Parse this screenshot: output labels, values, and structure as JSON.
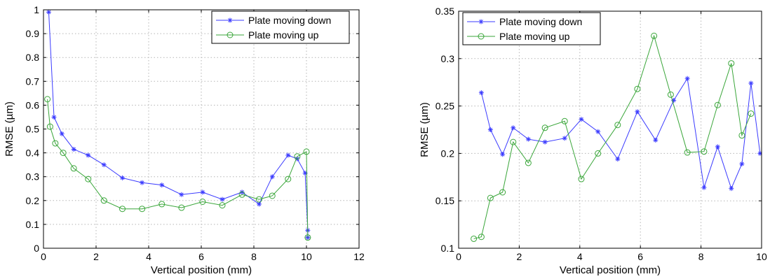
{
  "chart_data": [
    {
      "type": "line",
      "xlabel": "Vertical position (mm)",
      "ylabel": "RMSE (µm)",
      "xlim": [
        0,
        12
      ],
      "ylim": [
        0,
        1
      ],
      "xticks": [
        "0",
        "2",
        "4",
        "6",
        "8",
        "10",
        "12"
      ],
      "yticks": [
        "0",
        "0.1",
        "0.2",
        "0.3",
        "0.4",
        "0.5",
        "0.6",
        "0.7",
        "0.8",
        "0.9",
        "1"
      ],
      "grid": true,
      "legend_position": "top-right",
      "series": [
        {
          "name": "Plate moving down",
          "color": "#3b3bff",
          "marker": "star",
          "x": [
            0.2,
            0.4,
            0.7,
            1.15,
            1.7,
            2.3,
            3.0,
            3.75,
            4.5,
            5.25,
            6.05,
            6.8,
            7.55,
            8.2,
            8.7,
            9.3,
            9.65,
            9.95,
            10.05,
            10.05
          ],
          "y": [
            0.99,
            0.55,
            0.48,
            0.415,
            0.39,
            0.35,
            0.295,
            0.275,
            0.265,
            0.225,
            0.235,
            0.205,
            0.235,
            0.185,
            0.3,
            0.39,
            0.375,
            0.315,
            0.075,
            0.045
          ]
        },
        {
          "name": "Plate moving up",
          "color": "#3aa63a",
          "marker": "circle",
          "x": [
            0.15,
            0.25,
            0.45,
            0.75,
            1.15,
            1.7,
            2.3,
            3.0,
            3.75,
            4.5,
            5.25,
            6.05,
            6.8,
            7.55,
            8.2,
            8.7,
            9.3,
            9.65,
            10.0,
            10.05
          ],
          "y": [
            0.625,
            0.51,
            0.44,
            0.4,
            0.335,
            0.29,
            0.2,
            0.165,
            0.165,
            0.185,
            0.17,
            0.195,
            0.18,
            0.225,
            0.205,
            0.22,
            0.29,
            0.385,
            0.405,
            0.045
          ]
        }
      ]
    },
    {
      "type": "line",
      "xlabel": "Vertical position (mm)",
      "ylabel": "RMSE (µm)",
      "xlim": [
        0,
        10
      ],
      "ylim": [
        0.1,
        0.35
      ],
      "xticks": [
        "0",
        "2",
        "4",
        "6",
        "8",
        "10"
      ],
      "yticks": [
        "0.1",
        "0.15",
        "0.2",
        "0.25",
        "0.3",
        "0.35"
      ],
      "grid": true,
      "legend_position": "top-left",
      "series": [
        {
          "name": "Plate moving down",
          "color": "#3b3bff",
          "marker": "star",
          "x": [
            0.75,
            1.05,
            1.45,
            1.8,
            2.3,
            2.85,
            3.5,
            4.05,
            4.6,
            5.25,
            5.9,
            6.5,
            7.1,
            7.55,
            8.1,
            8.55,
            9.0,
            9.35,
            9.65,
            9.95
          ],
          "y": [
            0.264,
            0.225,
            0.199,
            0.227,
            0.215,
            0.212,
            0.216,
            0.236,
            0.223,
            0.194,
            0.244,
            0.214,
            0.256,
            0.279,
            0.164,
            0.207,
            0.163,
            0.189,
            0.274,
            0.2
          ]
        },
        {
          "name": "Plate moving up",
          "color": "#3aa63a",
          "marker": "circle",
          "x": [
            0.5,
            0.75,
            1.05,
            1.45,
            1.8,
            2.3,
            2.85,
            3.5,
            4.05,
            4.6,
            5.25,
            5.9,
            6.45,
            7.0,
            7.55,
            8.1,
            8.55,
            9.0,
            9.35,
            9.65
          ],
          "y": [
            0.11,
            0.112,
            0.153,
            0.159,
            0.212,
            0.19,
            0.227,
            0.234,
            0.173,
            0.2,
            0.23,
            0.268,
            0.324,
            0.262,
            0.201,
            0.202,
            0.251,
            0.295,
            0.219,
            0.242
          ]
        }
      ]
    }
  ]
}
